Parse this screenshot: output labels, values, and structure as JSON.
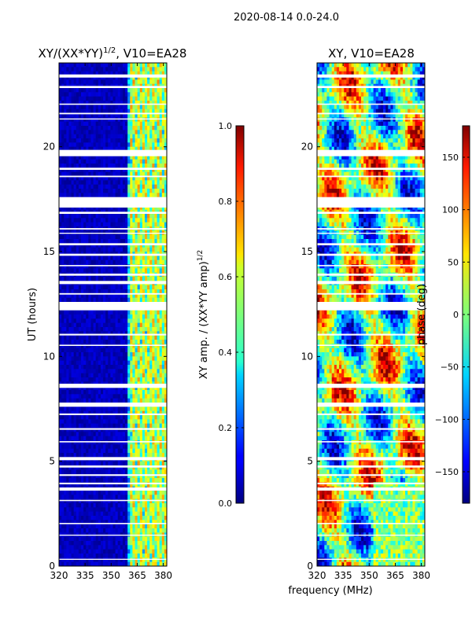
{
  "suptitle": "2020-08-14 0.0-24.0",
  "xlabel": "frequency (MHz)",
  "chart_data": [
    {
      "type": "heatmap",
      "title": "XY/(XX*YY)^1/2, V10=EA28",
      "title_main": "XY/(XX*YY)",
      "title_exp": "1/2",
      "title_tail": ", V10=EA28",
      "ylabel": "UT (hours)",
      "xlim": [
        320,
        382
      ],
      "ylim": [
        0,
        24
      ],
      "xticks": [
        320,
        335,
        350,
        365,
        380
      ],
      "yticks": [
        0,
        5,
        10,
        15,
        20
      ],
      "colorbar": {
        "label_main": "XY amp. / (XX*YY amp)",
        "label_exp": "1/2",
        "range": [
          0.0,
          1.0
        ],
        "ticks": [
          "0.0",
          "0.2",
          "0.4",
          "0.6",
          "0.8",
          "1.0"
        ],
        "tick_values": [
          0.0,
          0.2,
          0.4,
          0.6,
          0.8,
          1.0
        ]
      },
      "description_of_values": "near 0 (dark blue) below 359 MHz; 0.3-0.7 structured band between ~359-382 MHz"
    },
    {
      "type": "heatmap",
      "title": "XY, V10=EA28",
      "ylabel": "",
      "xlim": [
        320,
        382
      ],
      "ylim": [
        0,
        24
      ],
      "xticks": [
        320,
        335,
        350,
        365,
        380
      ],
      "yticks": [
        0,
        5,
        10,
        15,
        20
      ],
      "colorbar": {
        "label_main": "phase (deg)",
        "range": [
          -180,
          180
        ],
        "ticks": [
          "−150",
          "−100",
          "−50",
          "0",
          "50",
          "100",
          "150"
        ],
        "tick_values": [
          -150,
          -100,
          -50,
          0,
          50,
          100,
          150
        ]
      }
    }
  ],
  "flagged_gaps_hours": [
    [
      23.3,
      23.45
    ],
    [
      22.8,
      22.9
    ],
    [
      22.0,
      22.06
    ],
    [
      21.55,
      21.62
    ],
    [
      21.3,
      21.35
    ],
    [
      19.55,
      19.85
    ],
    [
      18.9,
      19.0
    ],
    [
      18.55,
      18.62
    ],
    [
      17.1,
      17.6
    ],
    [
      16.8,
      16.9
    ],
    [
      16.05,
      16.12
    ],
    [
      15.85,
      15.9
    ],
    [
      15.3,
      15.4
    ],
    [
      14.8,
      14.9
    ],
    [
      14.3,
      14.36
    ],
    [
      13.85,
      13.95
    ],
    [
      13.45,
      13.6
    ],
    [
      12.95,
      13.02
    ],
    [
      12.2,
      12.6
    ],
    [
      11.0,
      11.08
    ],
    [
      10.5,
      10.56
    ],
    [
      8.5,
      8.7
    ],
    [
      7.6,
      7.8
    ],
    [
      7.2,
      7.28
    ],
    [
      6.5,
      6.58
    ],
    [
      5.9,
      5.96
    ],
    [
      5.05,
      5.2
    ],
    [
      4.7,
      4.8
    ],
    [
      4.3,
      4.38
    ],
    [
      3.9,
      3.98
    ],
    [
      3.6,
      3.75
    ],
    [
      3.1,
      3.16
    ],
    [
      2.0,
      2.06
    ],
    [
      1.45,
      1.5
    ],
    [
      0.3,
      0.35
    ]
  ]
}
